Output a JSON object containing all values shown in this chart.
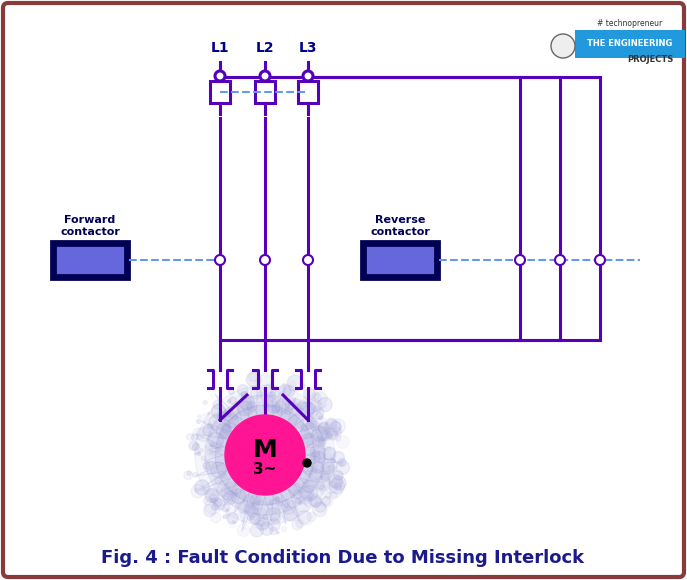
{
  "title": "Fig. 4 : Fault Condition Due to Missing Interlock",
  "title_color": "#1a1a8c",
  "bg_color": "#ffffff",
  "border_color": "#8B3A3A",
  "wire_color": "#5500bb",
  "dashed_color": "#6699ee",
  "motor_color": "#ff1493",
  "motor_text": "M",
  "motor_sub": "3~",
  "fwd_label1": "Forward",
  "fwd_label2": "contactor",
  "rev_label1": "Reverse",
  "rev_label2": "contactor",
  "L1": "L1",
  "L2": "L2",
  "L3": "L3"
}
